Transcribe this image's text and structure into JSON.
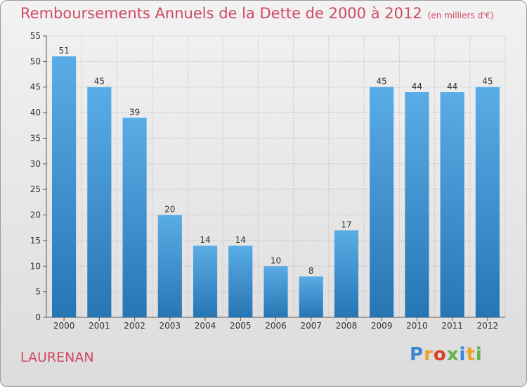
{
  "title": "Remboursements Annuels de la Dette de 2000 à 2012",
  "subtitle": "(en milliers d'€)",
  "location": "LAURENAN",
  "logo": {
    "text": "Proxiti",
    "letter_colors": [
      "#3a86d6",
      "#e9a12a",
      "#d9412b",
      "#5fb64a",
      "#3a86d6",
      "#e9a12a",
      "#5fb64a"
    ]
  },
  "colors": {
    "bar_light": "#5aace6",
    "bar_dark": "#2676b4",
    "title": "#cf4a61"
  },
  "chart_data": {
    "type": "bar",
    "categories": [
      "2000",
      "2001",
      "2002",
      "2003",
      "2004",
      "2005",
      "2006",
      "2007",
      "2008",
      "2009",
      "2010",
      "2011",
      "2012"
    ],
    "values": [
      51,
      45,
      39,
      20,
      14,
      14,
      10,
      8,
      17,
      45,
      44,
      44,
      45
    ],
    "ylim": [
      0,
      55
    ],
    "yticks": [
      0,
      5,
      10,
      15,
      20,
      25,
      30,
      35,
      40,
      45,
      50,
      55
    ],
    "grid": true,
    "data_labels": true
  }
}
